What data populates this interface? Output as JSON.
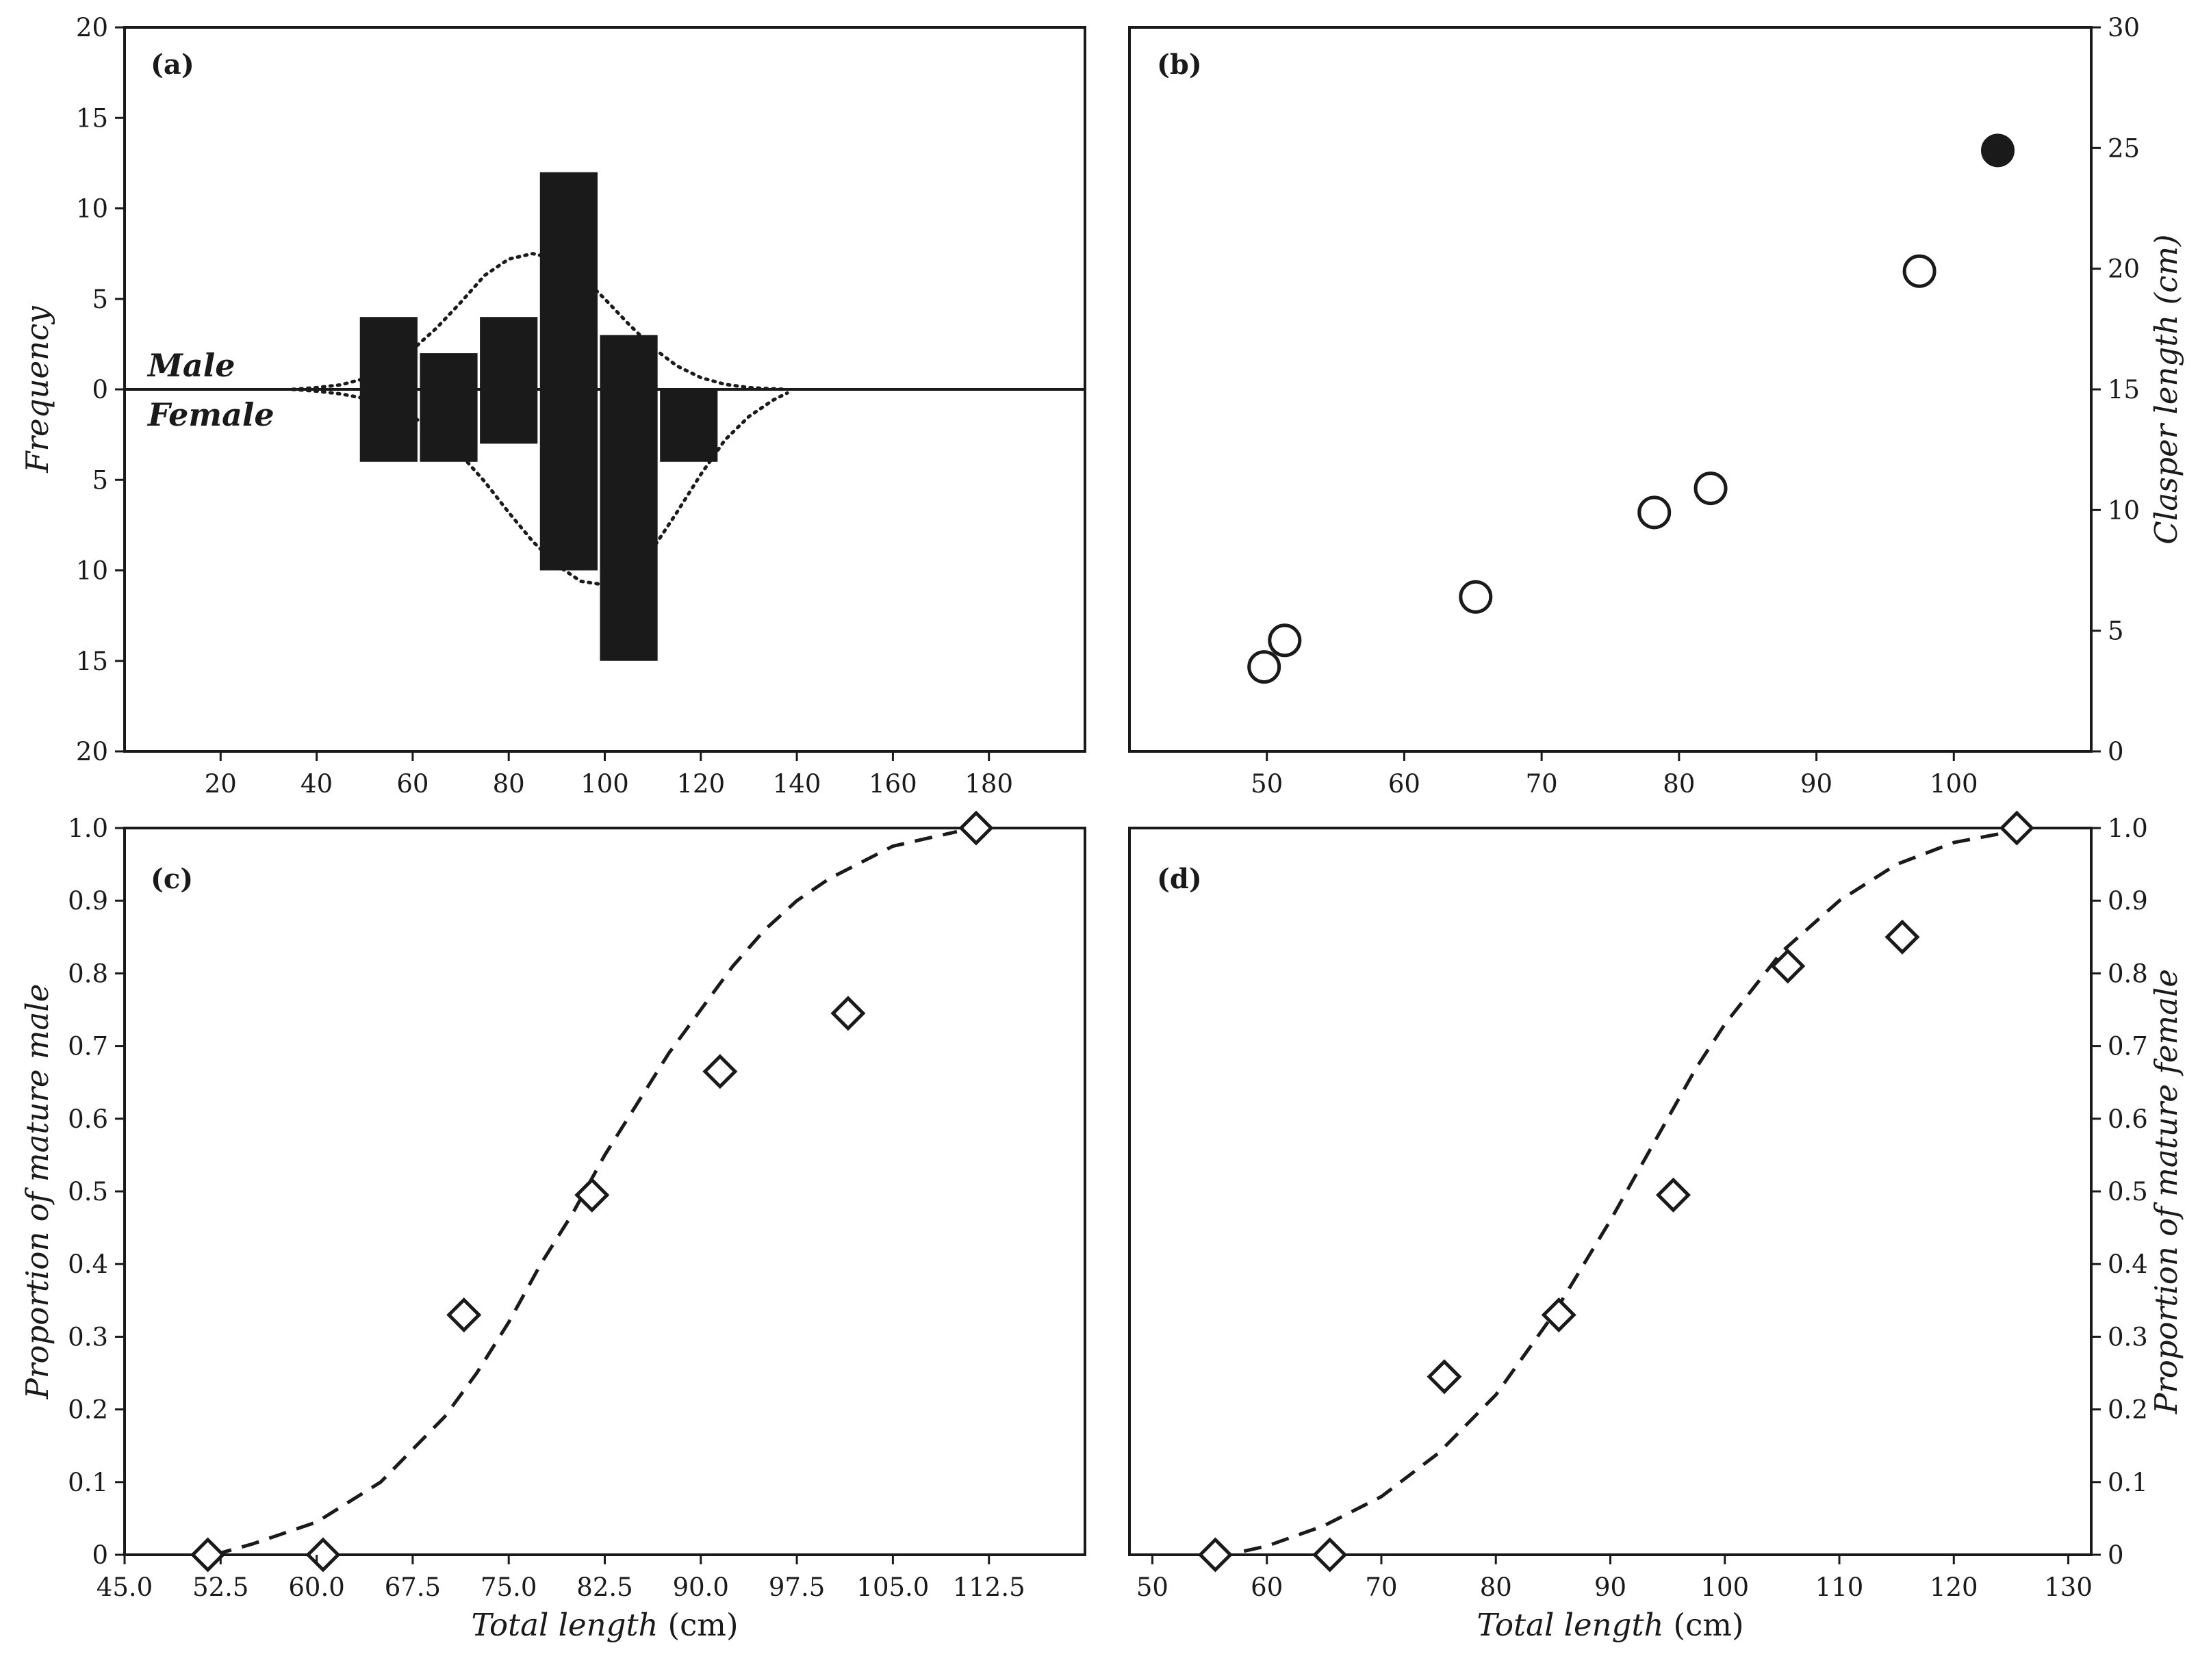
{
  "chart_data": [
    {
      "panel": "(a)",
      "type": "bar",
      "xlabel": "",
      "ylabel": "Frequency",
      "xlim": [
        0,
        200
      ],
      "ylim": [
        -20,
        20
      ],
      "xticks": [
        20,
        40,
        60,
        80,
        100,
        120,
        140,
        160,
        180
      ],
      "yticks": [
        -20,
        -15,
        -10,
        -5,
        0,
        5,
        10,
        15,
        20
      ],
      "ytick_labels": [
        "20",
        "15",
        "10",
        "5",
        "0",
        "5",
        "10",
        "15",
        "20"
      ],
      "annotations": [
        "Male",
        "Female"
      ],
      "bin_width": 12,
      "categories": [
        55,
        67.5,
        80,
        92.5,
        105,
        117.5
      ],
      "series": [
        {
          "name": "Male",
          "values": [
            4,
            2,
            4,
            12,
            3,
            0
          ]
        },
        {
          "name": "Female",
          "values": [
            4,
            4,
            3,
            10,
            15,
            4
          ]
        }
      ],
      "curves": [
        {
          "name": "Male",
          "style": "dotted",
          "x": [
            35,
            40,
            45,
            50,
            55,
            60,
            65,
            70,
            75,
            80,
            85,
            90,
            95,
            100,
            105,
            110,
            115,
            120,
            125,
            130,
            135,
            138
          ],
          "y": [
            0.0,
            0.1,
            0.25,
            0.6,
            1.2,
            2.2,
            3.4,
            4.8,
            6.3,
            7.2,
            7.5,
            7.2,
            6.3,
            5.0,
            3.6,
            2.3,
            1.3,
            0.65,
            0.28,
            0.1,
            0.03,
            0.0
          ]
        },
        {
          "name": "Female",
          "style": "dotted",
          "x": [
            35,
            40,
            45,
            50,
            55,
            60,
            65,
            70,
            75,
            80,
            85,
            90,
            95,
            100,
            105,
            110,
            115,
            120,
            125,
            130,
            135,
            138
          ],
          "y": [
            0.0,
            -0.1,
            -0.25,
            -0.5,
            -0.9,
            -1.5,
            -2.4,
            -3.6,
            -5.1,
            -6.8,
            -8.4,
            -9.7,
            -10.6,
            -10.8,
            -10.2,
            -8.8,
            -6.8,
            -4.7,
            -2.8,
            -1.5,
            -0.6,
            -0.2
          ]
        }
      ]
    },
    {
      "panel": "(b)",
      "type": "scatter",
      "xlabel": "",
      "ylabel": "Clasper length (cm)",
      "xlim": [
        40,
        110
      ],
      "ylim": [
        0,
        30
      ],
      "xticks": [
        50,
        60,
        70,
        80,
        90,
        100
      ],
      "yticks": [
        0,
        5,
        10,
        15,
        20,
        25,
        30
      ],
      "y_axis_side": "right",
      "series": [
        {
          "marker": "open-circle",
          "x": [
            49.8,
            51.3,
            65.2,
            78.2,
            82.3,
            97.5
          ],
          "y": [
            3.5,
            4.6,
            6.4,
            9.9,
            10.9,
            19.9
          ]
        },
        {
          "marker": "filled-circle",
          "x": [
            103.2
          ],
          "y": [
            24.9
          ]
        }
      ]
    },
    {
      "panel": "(c)",
      "type": "scatter",
      "xlabel_italic": "Total length",
      "xlabel_unit": "(cm)",
      "ylabel": "Proportion of mature male",
      "xlim": [
        45,
        120
      ],
      "ylim": [
        0,
        1
      ],
      "xticks": [
        45,
        52.5,
        60,
        67.5,
        75,
        82.5,
        90,
        97.5,
        105,
        112.5
      ],
      "xtick_labels": [
        "45.0",
        "52.5",
        "60.0",
        "67.5",
        "75.0",
        "82.5",
        "90.0",
        "97.5",
        "105.0",
        "112.5"
      ],
      "yticks": [
        0,
        0.1,
        0.2,
        0.3,
        0.4,
        0.5,
        0.6,
        0.7,
        0.8,
        0.9,
        1.0
      ],
      "ytick_labels": [
        "0",
        "0.1",
        "0.2",
        "0.3",
        "0.4",
        "0.5",
        "0.6",
        "0.7",
        "0.8",
        "0.9",
        "1.0"
      ],
      "series": [
        {
          "marker": "open-diamond",
          "x": [
            51.5,
            60.5,
            71.5,
            81.5,
            91.5,
            101.5,
            111.5
          ],
          "y": [
            0,
            0,
            0.33,
            0.495,
            0.665,
            0.745,
            1.0
          ]
        }
      ],
      "curve": {
        "style": "dashed",
        "x": [
          52,
          55,
          60,
          65,
          70,
          72.5,
          75,
          77.5,
          80,
          82.5,
          85,
          87.5,
          90,
          92.5,
          95,
          97.5,
          100,
          105,
          110
        ],
        "y": [
          0.0,
          0.015,
          0.045,
          0.1,
          0.19,
          0.25,
          0.32,
          0.4,
          0.47,
          0.55,
          0.62,
          0.69,
          0.75,
          0.81,
          0.86,
          0.9,
          0.93,
          0.975,
          0.995
        ]
      }
    },
    {
      "panel": "(d)",
      "type": "scatter",
      "xlabel_italic": "Total length",
      "xlabel_unit": "(cm)",
      "ylabel": "Proportion of mature female",
      "xlim": [
        48,
        132
      ],
      "ylim": [
        0,
        1
      ],
      "xticks": [
        50,
        60,
        70,
        80,
        90,
        100,
        110,
        120,
        130
      ],
      "yticks": [
        0,
        0.1,
        0.2,
        0.3,
        0.4,
        0.5,
        0.6,
        0.7,
        0.8,
        0.9,
        1.0
      ],
      "ytick_labels": [
        "0",
        "0.1",
        "0.2",
        "0.3",
        "0.4",
        "0.5",
        "0.6",
        "0.7",
        "0.8",
        "0.9",
        "1.0"
      ],
      "y_axis_side": "right",
      "series": [
        {
          "marker": "open-diamond",
          "x": [
            55.5,
            65.5,
            75.5,
            85.5,
            95.5,
            105.5,
            115.5,
            125.5
          ],
          "y": [
            0,
            0,
            0.245,
            0.33,
            0.495,
            0.81,
            0.85,
            1.0
          ]
        }
      ],
      "curve": {
        "style": "dashed",
        "x": [
          58,
          60,
          65,
          70,
          75,
          80,
          85,
          90,
          92.5,
          95,
          97.5,
          100,
          105,
          110,
          115,
          120,
          125
        ],
        "y": [
          0.005,
          0.012,
          0.04,
          0.08,
          0.14,
          0.22,
          0.33,
          0.46,
          0.53,
          0.6,
          0.67,
          0.73,
          0.83,
          0.9,
          0.95,
          0.98,
          0.995
        ]
      }
    }
  ]
}
